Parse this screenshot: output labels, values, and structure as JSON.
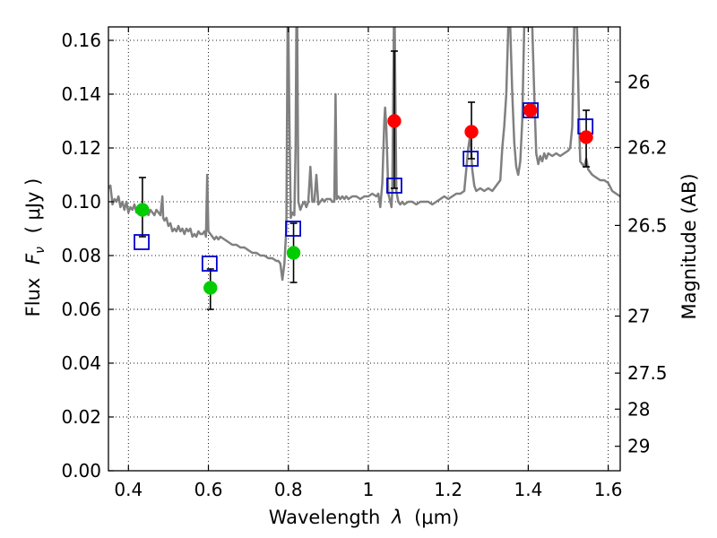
{
  "chart_data": {
    "type": "scatter",
    "xlabel_prefix": "Wavelength",
    "xlabel_var": "λ",
    "xlabel_unit": "(μm)",
    "ylabel_prefix": "Flux",
    "ylabel_var": "F",
    "ylabel_sub": "ν",
    "ylabel_unit": "( μJy )",
    "y2label": "Magnitude (AB)",
    "xlim": [
      0.35,
      1.63
    ],
    "ylim": [
      0.0,
      0.165
    ],
    "grid": true,
    "x_ticks": [
      0.4,
      0.6,
      0.8,
      1.0,
      1.2,
      1.4,
      1.6
    ],
    "x_tick_labels": [
      "0.4",
      "0.6",
      "0.8",
      "1",
      "1.2",
      "1.4",
      "1.6"
    ],
    "y_ticks": [
      0.0,
      0.02,
      0.04,
      0.06,
      0.08,
      0.1,
      0.12,
      0.14,
      0.16
    ],
    "y_tick_labels": [
      "0.00",
      "0.02",
      "0.04",
      "0.06",
      "0.08",
      "0.10",
      "0.12",
      "0.14",
      "0.16"
    ],
    "mag_ticks": [
      {
        "label": "26",
        "flux": 0.1445
      },
      {
        "label": "26.2",
        "flux": 0.1202
      },
      {
        "label": "26.5",
        "flux": 0.0912
      },
      {
        "label": "27",
        "flux": 0.0575
      },
      {
        "label": "27.5",
        "flux": 0.0363
      },
      {
        "label": "28",
        "flux": 0.0229
      },
      {
        "label": "29",
        "flux": 0.0091
      }
    ],
    "series": [
      {
        "kind": "spectrum",
        "color": "#808080",
        "points": [
          [
            0.35,
            0.105
          ],
          [
            0.355,
            0.106
          ],
          [
            0.36,
            0.099
          ],
          [
            0.365,
            0.101
          ],
          [
            0.37,
            0.1
          ],
          [
            0.375,
            0.102
          ],
          [
            0.38,
            0.098
          ],
          [
            0.385,
            0.1
          ],
          [
            0.39,
            0.097
          ],
          [
            0.395,
            0.1
          ],
          [
            0.4,
            0.096
          ],
          [
            0.405,
            0.098
          ],
          [
            0.41,
            0.097
          ],
          [
            0.415,
            0.099
          ],
          [
            0.42,
            0.096
          ],
          [
            0.425,
            0.098
          ],
          [
            0.43,
            0.097
          ],
          [
            0.435,
            0.096
          ],
          [
            0.44,
            0.098
          ],
          [
            0.445,
            0.097
          ],
          [
            0.45,
            0.095
          ],
          [
            0.455,
            0.097
          ],
          [
            0.46,
            0.096
          ],
          [
            0.465,
            0.095
          ],
          [
            0.47,
            0.097
          ],
          [
            0.475,
            0.096
          ],
          [
            0.48,
            0.095
          ],
          [
            0.485,
            0.102
          ],
          [
            0.487,
            0.094
          ],
          [
            0.49,
            0.093
          ],
          [
            0.495,
            0.094
          ],
          [
            0.5,
            0.091
          ],
          [
            0.505,
            0.092
          ],
          [
            0.51,
            0.089
          ],
          [
            0.515,
            0.09
          ],
          [
            0.52,
            0.089
          ],
          [
            0.525,
            0.091
          ],
          [
            0.53,
            0.089
          ],
          [
            0.535,
            0.09
          ],
          [
            0.54,
            0.088
          ],
          [
            0.545,
            0.09
          ],
          [
            0.55,
            0.089
          ],
          [
            0.555,
            0.09
          ],
          [
            0.56,
            0.087
          ],
          [
            0.565,
            0.088
          ],
          [
            0.57,
            0.087
          ],
          [
            0.575,
            0.089
          ],
          [
            0.58,
            0.088
          ],
          [
            0.585,
            0.088
          ],
          [
            0.59,
            0.089
          ],
          [
            0.594,
            0.087
          ],
          [
            0.597,
            0.11
          ],
          [
            0.6,
            0.089
          ],
          [
            0.605,
            0.088
          ],
          [
            0.61,
            0.087
          ],
          [
            0.615,
            0.086
          ],
          [
            0.62,
            0.087
          ],
          [
            0.625,
            0.086
          ],
          [
            0.63,
            0.087
          ],
          [
            0.64,
            0.086
          ],
          [
            0.65,
            0.085
          ],
          [
            0.66,
            0.084
          ],
          [
            0.67,
            0.084
          ],
          [
            0.68,
            0.083
          ],
          [
            0.69,
            0.083
          ],
          [
            0.7,
            0.082
          ],
          [
            0.71,
            0.081
          ],
          [
            0.72,
            0.081
          ],
          [
            0.73,
            0.08
          ],
          [
            0.74,
            0.08
          ],
          [
            0.75,
            0.079
          ],
          [
            0.76,
            0.079
          ],
          [
            0.77,
            0.078
          ],
          [
            0.775,
            0.078
          ],
          [
            0.78,
            0.077
          ],
          [
            0.785,
            0.071
          ],
          [
            0.79,
            0.077
          ],
          [
            0.795,
            0.09
          ],
          [
            0.798,
            0.165
          ],
          [
            0.8,
            0.165
          ],
          [
            0.803,
            0.125
          ],
          [
            0.806,
            0.094
          ],
          [
            0.81,
            0.096
          ],
          [
            0.815,
            0.095
          ],
          [
            0.818,
            0.12
          ],
          [
            0.82,
            0.165
          ],
          [
            0.822,
            0.165
          ],
          [
            0.825,
            0.1
          ],
          [
            0.83,
            0.097
          ],
          [
            0.835,
            0.099
          ],
          [
            0.84,
            0.1
          ],
          [
            0.845,
            0.098
          ],
          [
            0.85,
            0.1
          ],
          [
            0.855,
            0.113
          ],
          [
            0.86,
            0.1
          ],
          [
            0.865,
            0.1
          ],
          [
            0.87,
            0.11
          ],
          [
            0.875,
            0.099
          ],
          [
            0.88,
            0.1
          ],
          [
            0.885,
            0.101
          ],
          [
            0.89,
            0.1
          ],
          [
            0.895,
            0.101
          ],
          [
            0.9,
            0.101
          ],
          [
            0.905,
            0.101
          ],
          [
            0.91,
            0.1
          ],
          [
            0.915,
            0.1
          ],
          [
            0.918,
            0.14
          ],
          [
            0.921,
            0.101
          ],
          [
            0.925,
            0.102
          ],
          [
            0.93,
            0.101
          ],
          [
            0.935,
            0.102
          ],
          [
            0.94,
            0.101
          ],
          [
            0.945,
            0.102
          ],
          [
            0.95,
            0.101
          ],
          [
            0.96,
            0.102
          ],
          [
            0.97,
            0.102
          ],
          [
            0.98,
            0.101
          ],
          [
            0.99,
            0.102
          ],
          [
            1.0,
            0.102
          ],
          [
            1.01,
            0.103
          ],
          [
            1.02,
            0.102
          ],
          [
            1.025,
            0.103
          ],
          [
            1.03,
            0.098
          ],
          [
            1.035,
            0.107
          ],
          [
            1.04,
            0.13
          ],
          [
            1.042,
            0.135
          ],
          [
            1.045,
            0.128
          ],
          [
            1.05,
            0.103
          ],
          [
            1.055,
            0.1
          ],
          [
            1.058,
            0.098
          ],
          [
            1.06,
            0.104
          ],
          [
            1.064,
            0.165
          ],
          [
            1.066,
            0.165
          ],
          [
            1.07,
            0.104
          ],
          [
            1.075,
            0.1
          ],
          [
            1.08,
            0.099
          ],
          [
            1.085,
            0.1
          ],
          [
            1.09,
            0.099
          ],
          [
            1.1,
            0.1
          ],
          [
            1.11,
            0.1
          ],
          [
            1.12,
            0.099
          ],
          [
            1.13,
            0.1
          ],
          [
            1.14,
            0.1
          ],
          [
            1.15,
            0.1
          ],
          [
            1.16,
            0.099
          ],
          [
            1.17,
            0.1
          ],
          [
            1.18,
            0.101
          ],
          [
            1.19,
            0.102
          ],
          [
            1.2,
            0.101
          ],
          [
            1.21,
            0.102
          ],
          [
            1.22,
            0.103
          ],
          [
            1.23,
            0.103
          ],
          [
            1.24,
            0.104
          ],
          [
            1.25,
            0.12
          ],
          [
            1.255,
            0.125
          ],
          [
            1.26,
            0.112
          ],
          [
            1.265,
            0.106
          ],
          [
            1.27,
            0.104
          ],
          [
            1.28,
            0.105
          ],
          [
            1.29,
            0.104
          ],
          [
            1.3,
            0.105
          ],
          [
            1.31,
            0.104
          ],
          [
            1.32,
            0.106
          ],
          [
            1.33,
            0.108
          ],
          [
            1.335,
            0.12
          ],
          [
            1.34,
            0.128
          ],
          [
            1.345,
            0.14
          ],
          [
            1.35,
            0.165
          ],
          [
            1.355,
            0.165
          ],
          [
            1.36,
            0.14
          ],
          [
            1.365,
            0.122
          ],
          [
            1.37,
            0.113
          ],
          [
            1.375,
            0.11
          ],
          [
            1.38,
            0.115
          ],
          [
            1.385,
            0.13
          ],
          [
            1.39,
            0.165
          ],
          [
            1.41,
            0.165
          ],
          [
            1.415,
            0.14
          ],
          [
            1.42,
            0.118
          ],
          [
            1.425,
            0.114
          ],
          [
            1.43,
            0.117
          ],
          [
            1.435,
            0.115
          ],
          [
            1.44,
            0.118
          ],
          [
            1.445,
            0.116
          ],
          [
            1.45,
            0.118
          ],
          [
            1.46,
            0.117
          ],
          [
            1.47,
            0.118
          ],
          [
            1.48,
            0.117
          ],
          [
            1.49,
            0.118
          ],
          [
            1.5,
            0.119
          ],
          [
            1.505,
            0.12
          ],
          [
            1.51,
            0.128
          ],
          [
            1.515,
            0.165
          ],
          [
            1.522,
            0.165
          ],
          [
            1.527,
            0.13
          ],
          [
            1.53,
            0.115
          ],
          [
            1.54,
            0.113
          ],
          [
            1.545,
            0.116
          ],
          [
            1.55,
            0.112
          ],
          [
            1.56,
            0.11
          ],
          [
            1.57,
            0.109
          ],
          [
            1.58,
            0.108
          ],
          [
            1.59,
            0.108
          ],
          [
            1.6,
            0.107
          ],
          [
            1.61,
            0.104
          ],
          [
            1.62,
            0.103
          ],
          [
            1.63,
            0.102
          ]
        ]
      },
      {
        "kind": "model_boxes",
        "color": "#0000cc",
        "points": [
          [
            0.433,
            0.085
          ],
          [
            0.603,
            0.077
          ],
          [
            0.812,
            0.09
          ],
          [
            1.065,
            0.106
          ],
          [
            1.256,
            0.116
          ],
          [
            1.406,
            0.134
          ],
          [
            1.543,
            0.128
          ]
        ]
      },
      {
        "kind": "measured_green",
        "color": "#00cc00",
        "points": [
          {
            "x": 0.435,
            "y": 0.097,
            "lo": 0.087,
            "hi": 0.109
          },
          {
            "x": 0.605,
            "y": 0.068,
            "lo": 0.06,
            "hi": 0.075
          },
          {
            "x": 0.813,
            "y": 0.081,
            "lo": 0.07,
            "hi": 0.092
          }
        ]
      },
      {
        "kind": "measured_red",
        "color": "#ff0000",
        "points": [
          {
            "x": 1.065,
            "y": 0.13,
            "lo": 0.105,
            "hi": 0.156
          },
          {
            "x": 1.258,
            "y": 0.126,
            "lo": 0.116,
            "hi": 0.137
          },
          {
            "x": 1.405,
            "y": 0.134,
            "lo": null,
            "hi": null
          },
          {
            "x": 1.545,
            "y": 0.124,
            "lo": 0.113,
            "hi": 0.134
          }
        ]
      }
    ]
  }
}
